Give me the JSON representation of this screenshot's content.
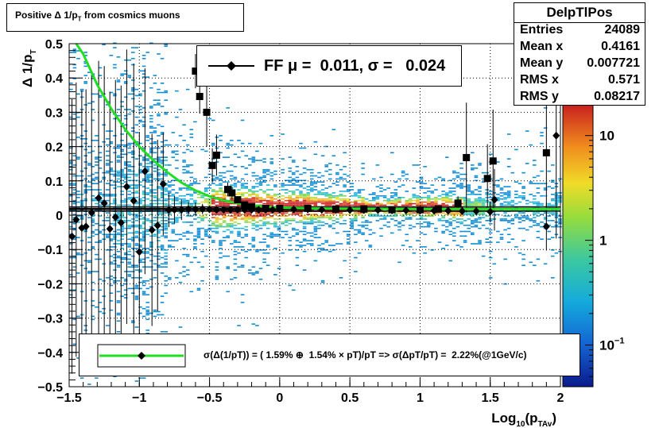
{
  "title": "Positive Δ 1/p",
  "title_sub": "T",
  "title_rest": " from cosmics muons",
  "stats": {
    "name": "DelpTlPos",
    "rows": [
      {
        "key": "Entries",
        "value": "24089"
      },
      {
        "key": "Mean x",
        "value": "0.4161"
      },
      {
        "key": "Mean y",
        "value": "0.007721"
      },
      {
        "key": "RMS x",
        "value": "0.571"
      },
      {
        "key": "RMS y",
        "value": "0.08217"
      }
    ]
  },
  "legend_fit": "FF μ =  0.011, σ =   0.024",
  "legend_resolution": "σ(Δ(1/pT)) = ( 1.59% ⊕  1.54% × pT)/pT => σ(ΔpT/pT) =  2.22%(@1GeV/c)",
  "colors": {
    "fit_curve": "#22dd22",
    "markers": "#000000"
  },
  "chart_data": {
    "type": "heatmap",
    "xlabel": "Log",
    "xlabel_sub": "10",
    "xlabel_mid": "(p",
    "xlabel_sub2": "TAv",
    "xlabel_end": ")",
    "ylabel": "Δ 1/p",
    "ylabel_sub": "T",
    "xlim": [
      -1.5,
      2.0
    ],
    "ylim": [
      -0.5,
      0.5
    ],
    "x_ticks": [
      "−1.5",
      "−1",
      "−0.5",
      "0",
      "0.5",
      "1",
      "1.5",
      "2"
    ],
    "x_tick_values": [
      -1.5,
      -1,
      -0.5,
      0,
      0.5,
      1,
      1.5,
      2
    ],
    "y_ticks": [
      "−0.5",
      "−0.4",
      "−0.3",
      "−0.2",
      "−0.1",
      "0",
      "0.1",
      "0.2",
      "0.3",
      "0.4",
      "0.5"
    ],
    "y_tick_values": [
      -0.5,
      -0.4,
      -0.3,
      -0.2,
      -0.1,
      0,
      0.1,
      0.2,
      0.3,
      0.4,
      0.5
    ],
    "colorbar_ticks": [
      "10",
      "1",
      "10"
    ],
    "colorbar_exp": [
      "",
      "",
      "−1"
    ],
    "colorbar_values": [
      10,
      1,
      0.1
    ],
    "colorbar_range": [
      0.04,
      20
    ],
    "grid": true,
    "fit_curve": {
      "x": [
        -1.45,
        -1.4,
        -1.3,
        -1.2,
        -1.1,
        -1.0,
        -0.9,
        -0.8,
        -0.7,
        -0.6,
        -0.5,
        -0.4,
        -0.3,
        -0.2,
        -0.1,
        0.0,
        0.25,
        0.5,
        1.0,
        1.5,
        2.0
      ],
      "y": [
        0.5,
        0.47,
        0.38,
        0.31,
        0.25,
        0.2,
        0.16,
        0.125,
        0.095,
        0.072,
        0.055,
        0.043,
        0.035,
        0.029,
        0.025,
        0.022,
        0.02,
        0.019,
        0.018,
        0.018,
        0.018
      ]
    },
    "series_diamond": {
      "x": [
        -1.48,
        -1.45,
        -1.41,
        -1.38,
        -1.34,
        -1.29,
        -1.25,
        -1.21,
        -1.17,
        -1.13,
        -1.09,
        -1.04,
        -1.0,
        -0.96,
        -0.91,
        -0.87,
        -0.83,
        -0.79,
        -0.75,
        -0.7,
        -0.65,
        -0.6,
        -0.55,
        -0.5,
        -0.45,
        -0.4,
        -0.35,
        -0.3,
        -0.25,
        -0.2,
        -0.15,
        -0.1,
        -0.05,
        0.0,
        0.1,
        0.2,
        0.3,
        0.4,
        0.5,
        0.6,
        0.7,
        0.8,
        0.9,
        1.0,
        1.1,
        1.2,
        1.3,
        1.4,
        1.5,
        1.53,
        1.9,
        1.97
      ],
      "y": [
        -0.062,
        -0.013,
        -0.037,
        -0.033,
        0.007,
        0.05,
        0.035,
        -0.04,
        -0.006,
        -0.022,
        0.083,
        0.042,
        -0.107,
        0.128,
        -0.043,
        -0.03,
        0.091,
        0.015,
        0.016,
        0.016,
        0.018,
        0.017,
        0.018,
        0.017,
        0.016,
        0.016,
        0.016,
        0.016,
        0.016,
        0.016,
        0.016,
        0.016,
        0.016,
        0.017,
        0.017,
        0.017,
        0.016,
        0.016,
        0.015,
        0.015,
        0.015,
        0.014,
        0.014,
        0.013,
        0.013,
        0.013,
        0.012,
        0.012,
        0.01,
        0.045,
        -0.033,
        0.232
      ],
      "yerr": [
        0.4,
        0.4,
        0.4,
        0.4,
        0.4,
        0.4,
        0.4,
        0.4,
        0.4,
        0.4,
        0.4,
        0.4,
        0.35,
        0.3,
        0.28,
        0.25,
        0.15,
        0.05,
        0.04,
        0.03,
        0.02,
        0.02,
        0.015,
        0.01,
        0.01,
        0.01,
        0.01,
        0.01,
        0.01,
        0.01,
        0.01,
        0.01,
        0.01,
        0.01,
        0.01,
        0.01,
        0.01,
        0.01,
        0.01,
        0.01,
        0.01,
        0.01,
        0.01,
        0.01,
        0.01,
        0.01,
        0.01,
        0.01,
        0.03,
        0.09,
        0.07,
        0.3
      ]
    },
    "series_square": {
      "x": [
        -0.6,
        -0.57,
        -0.52,
        -0.48,
        -0.45,
        -0.37,
        -0.34,
        -0.3,
        -0.25,
        -0.2,
        -0.1,
        0.0,
        0.2,
        0.4,
        0.6,
        0.8,
        1.0,
        1.13,
        1.27,
        1.33,
        1.48,
        1.52,
        1.9
      ],
      "y": [
        0.42,
        0.346,
        0.3,
        0.145,
        0.175,
        0.075,
        0.065,
        0.045,
        0.03,
        0.025,
        0.02,
        0.02,
        0.02,
        0.018,
        0.018,
        0.016,
        0.016,
        0.018,
        0.035,
        0.168,
        0.107,
        0.158,
        0.182
      ],
      "yerr": [
        0.05,
        0.05,
        0.1,
        0.05,
        0.06,
        0.02,
        0.02,
        0.01,
        0.01,
        0.01,
        0.01,
        0.01,
        0.01,
        0.01,
        0.01,
        0.01,
        0.01,
        0.01,
        0.02,
        0.16,
        0.1,
        0.15,
        0.2
      ]
    },
    "mean_line_y": 0.018,
    "band_lines_y": [
      0.024,
      0.012
    ]
  }
}
